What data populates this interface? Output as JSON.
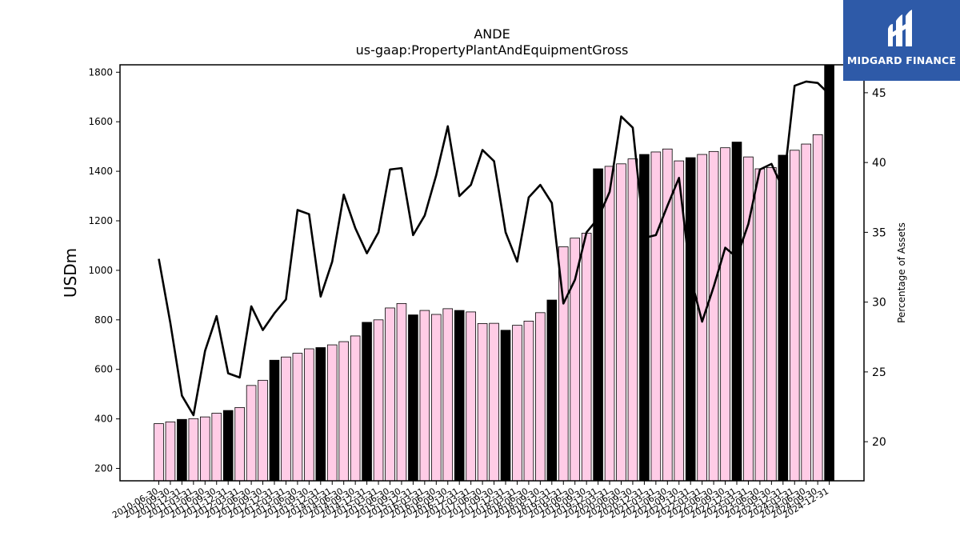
{
  "logo": {
    "text": "MIDGARD FINANCE",
    "background": "#2e5aa8",
    "icon": "midgard-logo-icon"
  },
  "chart_data": {
    "type": "bar",
    "title": "ANDE",
    "subtitle": "us-gaap:PropertyPlantAndEquipmentGross",
    "ylabel": "USDm",
    "y2label": "Percentage of Assets",
    "ylim": [
      150,
      1830
    ],
    "y2lim": [
      17.2,
      47.0
    ],
    "yticks": [
      200,
      400,
      600,
      800,
      1000,
      1200,
      1400,
      1600,
      1800
    ],
    "y2ticks": [
      20,
      25,
      30,
      35,
      40,
      45
    ],
    "colors": {
      "quarter_bar": "#ffcce6",
      "year_end_bar": "#000000",
      "line": "#000000"
    },
    "categories": [
      "2010-06-30",
      "2010-09-30",
      "2010-12-31",
      "2011-03-31",
      "2011-06-30",
      "2011-09-30",
      "2011-12-31",
      "2012-03-31",
      "2012-06-30",
      "2012-09-30",
      "2012-12-31",
      "2013-03-31",
      "2013-06-30",
      "2013-09-30",
      "2013-12-31",
      "2014-03-31",
      "2014-06-30",
      "2014-09-30",
      "2014-12-31",
      "2015-03-31",
      "2015-06-30",
      "2015-09-30",
      "2015-12-31",
      "2016-03-31",
      "2016-06-30",
      "2016-09-30",
      "2016-12-31",
      "2017-03-31",
      "2017-06-30",
      "2017-09-30",
      "2017-12-31",
      "2018-03-31",
      "2018-06-30",
      "2018-09-30",
      "2018-12-31",
      "2019-03-31",
      "2019-06-30",
      "2019-09-30",
      "2019-12-31",
      "2020-03-31",
      "2020-06-30",
      "2020-09-30",
      "2020-12-31",
      "2021-03-31",
      "2021-06-30",
      "2021-09-30",
      "2021-12-31",
      "2022-03-31",
      "2022-06-30",
      "2022-09-30",
      "2022-12-31",
      "2023-03-31",
      "2023-06-30",
      "2023-09-30",
      "2023-12-31",
      "2024-03-31",
      "2024-06-30",
      "2024-09-30",
      "2024-12-31"
    ],
    "xtick_labels": [
      "2010-06-30",
      "2010-09-30",
      "2010-12-31",
      "2011-03-31",
      "2011-06-30",
      "2011-09-30",
      "2011-12-31",
      "2012-03-31",
      "2012-06-30",
      "2012-09-30",
      "2012-12-31",
      "2013-03-31",
      "2013-06-30",
      "2013-09-30",
      "2013-12-31",
      "2014-03-31",
      "2014-06-30",
      "2014-09-30",
      "2014-12-31",
      "2015-03-31",
      "2015-06-30",
      "2015-09-30",
      "2015-12-31",
      "2016-03-31",
      "2016-06-30",
      "2016-09-30",
      "2016-12-31",
      "2017-03-31",
      "2017-06-30",
      "2017-09-30",
      "2017-12-31",
      "2018-03-31",
      "2018-06-30",
      "2018-09-30",
      "2018-12-31",
      "2019-03-31",
      "2019-06-30",
      "2019-09-30",
      "2019-12-31",
      "2020-03-31",
      "2020-06-30",
      "2020-09-30",
      "2020-12-31",
      "2021-03-31",
      "2021-06-30",
      "2021-09-30",
      "2021-12-31",
      "2022-03-31",
      "2022-06-30",
      "2022-09-30",
      "2022-12-31",
      "2023-03-31",
      "2023-06-30",
      "2023-09-30",
      "2023-12-31",
      "2024-03-31",
      "2024-06-30",
      "2024-09-30",
      "2024-12-31"
    ],
    "year_end": [
      false,
      false,
      true,
      false,
      false,
      false,
      true,
      false,
      false,
      false,
      true,
      false,
      false,
      false,
      true,
      false,
      false,
      false,
      true,
      false,
      false,
      false,
      true,
      false,
      false,
      false,
      true,
      false,
      false,
      false,
      true,
      false,
      false,
      false,
      true,
      false,
      false,
      false,
      true,
      false,
      false,
      false,
      true,
      false,
      false,
      false,
      true,
      false,
      false,
      false,
      true,
      false,
      false,
      false,
      true,
      false,
      false,
      false,
      true
    ],
    "series": [
      {
        "type": "bar",
        "axis": "left",
        "values": [
          381,
          388,
          398,
          401,
          408,
          423,
          434,
          446,
          535,
          556,
          637,
          650,
          665,
          683,
          688,
          699,
          712,
          735,
          790,
          800,
          848,
          866,
          820,
          838,
          822,
          845,
          838,
          832,
          785,
          786,
          758,
          778,
          795,
          829,
          880,
          1095,
          1130,
          1150,
          1410,
          1420,
          1430,
          1450,
          1468,
          1478,
          1490,
          1442,
          1455,
          1468,
          1480,
          1495,
          1518,
          1458,
          1410,
          1415,
          1465,
          1485,
          1510,
          1548,
          1830
        ]
      },
      {
        "type": "line",
        "axis": "right",
        "values": [
          33.1,
          28.5,
          23.3,
          21.9,
          26.5,
          29.0,
          24.9,
          24.6,
          29.7,
          28.0,
          29.2,
          30.2,
          36.6,
          36.3,
          30.4,
          32.9,
          37.7,
          35.3,
          33.5,
          35.0,
          39.5,
          39.6,
          34.8,
          36.2,
          39.1,
          42.6,
          37.6,
          38.4,
          40.9,
          40.1,
          35.0,
          32.9,
          37.5,
          38.4,
          37.1,
          29.9,
          31.6,
          35.0,
          36.0,
          37.9,
          43.3,
          42.5,
          34.6,
          34.8,
          36.9,
          38.9,
          31.8,
          28.6,
          31.1,
          33.9,
          33.2,
          35.6,
          39.5,
          39.9,
          38.1,
          45.5,
          45.8,
          45.7,
          44.9
        ]
      }
    ]
  }
}
